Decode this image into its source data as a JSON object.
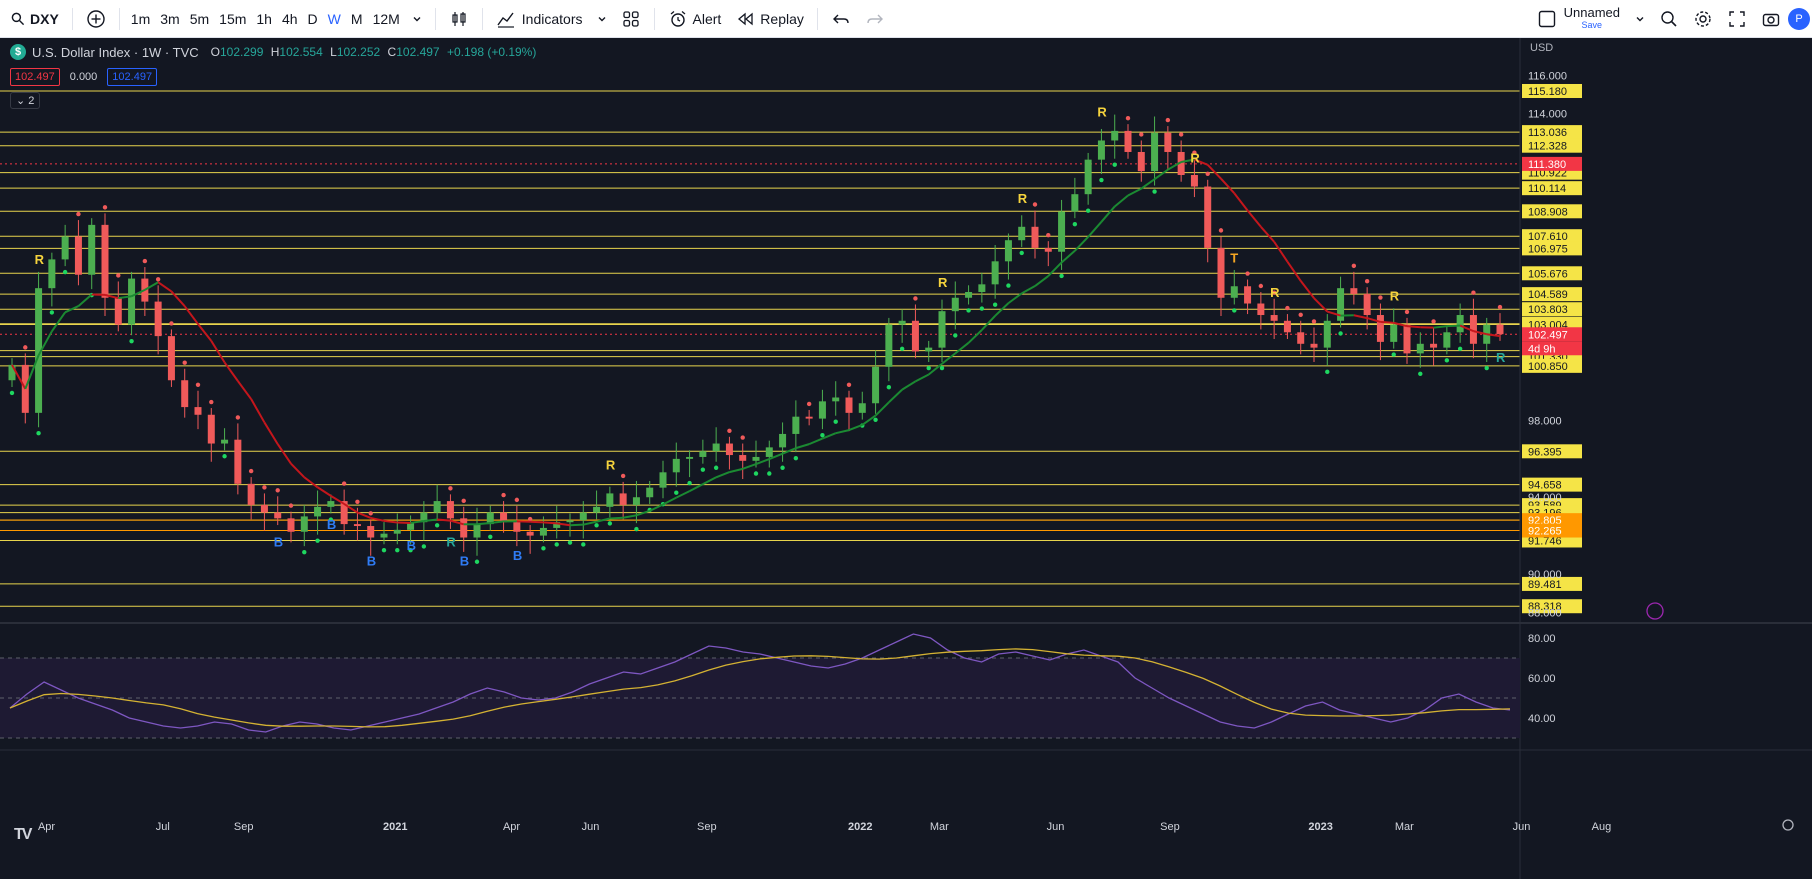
{
  "toolbar": {
    "symbol": "DXY",
    "intervals": [
      "1m",
      "3m",
      "5m",
      "15m",
      "1h",
      "4h",
      "D",
      "W",
      "M",
      "12M"
    ],
    "active_interval": "W",
    "indicators_label": "Indicators",
    "alert_label": "Alert",
    "replay_label": "Replay",
    "layout_name": "Unnamed",
    "save_label": "Save",
    "avatar_letter": "P"
  },
  "legend": {
    "title": "U.S. Dollar Index · 1W · TVC",
    "o_label": "O",
    "o": "102.299",
    "h_label": "H",
    "h": "102.554",
    "l_label": "L",
    "l": "102.252",
    "c_label": "C",
    "c": "102.497",
    "change": "+0.198 (+0.19%)",
    "chip_bid": "102.497",
    "chip_spread": "0.000",
    "chip_ask": "102.497",
    "collapse_count": "2"
  },
  "colors": {
    "up": "#4caf50",
    "down": "#f05a5a",
    "level_line": "#e8d44d",
    "accent": "#2962ff",
    "rsi": "#7e57c2",
    "rsi_ma": "#d4b233"
  },
  "chart_data": {
    "type": "candlestick",
    "currency_label": "USD",
    "yaxis_ticks": [
      "116.000",
      "114.000",
      "98.000",
      "94.000",
      "90.000",
      "88.000"
    ],
    "level_lines": [
      "115.180",
      "113.036",
      "112.328",
      "110.922",
      "110.114",
      "108.908",
      "107.610",
      "106.975",
      "105.676",
      "104.589",
      "103.803",
      "103.042",
      "103.004",
      "101.641",
      "101.330",
      "100.850",
      "96.395",
      "94.658",
      "93.589",
      "93.196",
      "92.805",
      "92.265",
      "91.746",
      "89.481",
      "88.318"
    ],
    "marked_levels": [
      {
        "value": "111.380",
        "color": "#f23645"
      },
      {
        "value": "102.497",
        "color": "#f23645"
      },
      {
        "value": "92.805",
        "color": "#ff9800"
      },
      {
        "value": "92.265",
        "color": "#ff9800"
      }
    ],
    "countdown": "4d 9h",
    "current_price": 102.497,
    "x_ticks": [
      "Apr",
      "Jul",
      "Sep",
      "2021",
      "Apr",
      "Jun",
      "Sep",
      "2022",
      "Mar",
      "Jun",
      "Sep",
      "2023",
      "Mar",
      "Jun",
      "Aug"
    ],
    "closes": [
      100.9,
      98.4,
      104.9,
      106.4,
      107.6,
      105.6,
      108.2,
      104.4,
      103.0,
      105.4,
      104.2,
      102.4,
      100.1,
      98.7,
      98.3,
      96.8,
      97.0,
      94.7,
      93.6,
      93.2,
      92.9,
      92.2,
      93.0,
      93.5,
      93.8,
      92.6,
      92.5,
      91.9,
      92.1,
      92.3,
      92.7,
      93.2,
      93.8,
      92.9,
      91.9,
      92.6,
      93.2,
      92.7,
      92.2,
      92.0,
      92.4,
      92.7,
      92.8,
      93.2,
      93.5,
      94.2,
      93.6,
      94.0,
      94.5,
      95.3,
      96.0,
      96.1,
      96.4,
      96.8,
      96.2,
      95.9,
      96.1,
      96.6,
      97.3,
      98.2,
      98.1,
      99.0,
      99.2,
      98.4,
      98.9,
      100.8,
      103.0,
      103.2,
      101.6,
      101.8,
      103.7,
      104.4,
      104.7,
      105.1,
      106.3,
      107.4,
      108.1,
      107.0,
      106.8,
      108.9,
      109.8,
      111.6,
      112.6,
      113.1,
      112.0,
      111.0,
      113.0,
      112.0,
      110.8,
      110.2,
      107.0,
      104.4,
      105.0,
      104.1,
      103.5,
      103.2,
      102.6,
      102.0,
      101.8,
      103.2,
      104.9,
      104.6,
      103.5,
      102.1,
      103.0,
      101.5,
      102.0,
      101.8,
      102.6,
      103.5,
      102.0,
      103.0,
      102.5
    ],
    "signal_labels": [
      {
        "text": "R",
        "color": "#f5d33d",
        "i": 2
      },
      {
        "text": "B",
        "color": "#2f7cf6",
        "i": 20
      },
      {
        "text": "B",
        "color": "#2f7cf6",
        "i": 24
      },
      {
        "text": "B",
        "color": "#2f7cf6",
        "i": 27
      },
      {
        "text": "B",
        "color": "#2f7cf6",
        "i": 30
      },
      {
        "text": "R",
        "color": "#26a69a",
        "i": 33
      },
      {
        "text": "B",
        "color": "#2f7cf6",
        "i": 34
      },
      {
        "text": "B",
        "color": "#2f7cf6",
        "i": 38
      },
      {
        "text": "R",
        "color": "#f5d33d",
        "i": 45
      },
      {
        "text": "R",
        "color": "#f5d33d",
        "i": 70
      },
      {
        "text": "R",
        "color": "#f5d33d",
        "i": 76
      },
      {
        "text": "R",
        "color": "#f5d33d",
        "i": 82
      },
      {
        "text": "R",
        "color": "#f5d33d",
        "i": 89
      },
      {
        "text": "T",
        "color": "#f5a623",
        "i": 92
      },
      {
        "text": "R",
        "color": "#f5d33d",
        "i": 95
      },
      {
        "text": "R",
        "color": "#f5d33d",
        "i": 104
      },
      {
        "text": "R",
        "color": "#26a69a",
        "i": 130
      }
    ],
    "rsi": {
      "ticks": [
        "80.00",
        "60.00",
        "40.00"
      ],
      "values": [
        45,
        52,
        58,
        54,
        50,
        47,
        44,
        40,
        38,
        36,
        35,
        36,
        38,
        37,
        34,
        33,
        36,
        38,
        37,
        35,
        34,
        36,
        38,
        40,
        42,
        45,
        48,
        52,
        55,
        53,
        50,
        49,
        50,
        53,
        57,
        60,
        63,
        62,
        65,
        68,
        72,
        76,
        75,
        73,
        72,
        70,
        68,
        66,
        65,
        67,
        70,
        74,
        78,
        82,
        80,
        74,
        70,
        68,
        72,
        73,
        71,
        69,
        72,
        74,
        71,
        68,
        60,
        55,
        50,
        46,
        42,
        38,
        36,
        35,
        38,
        42,
        46,
        48,
        44,
        42,
        40,
        38,
        40,
        44,
        50,
        52,
        48,
        45,
        44
      ]
    }
  }
}
